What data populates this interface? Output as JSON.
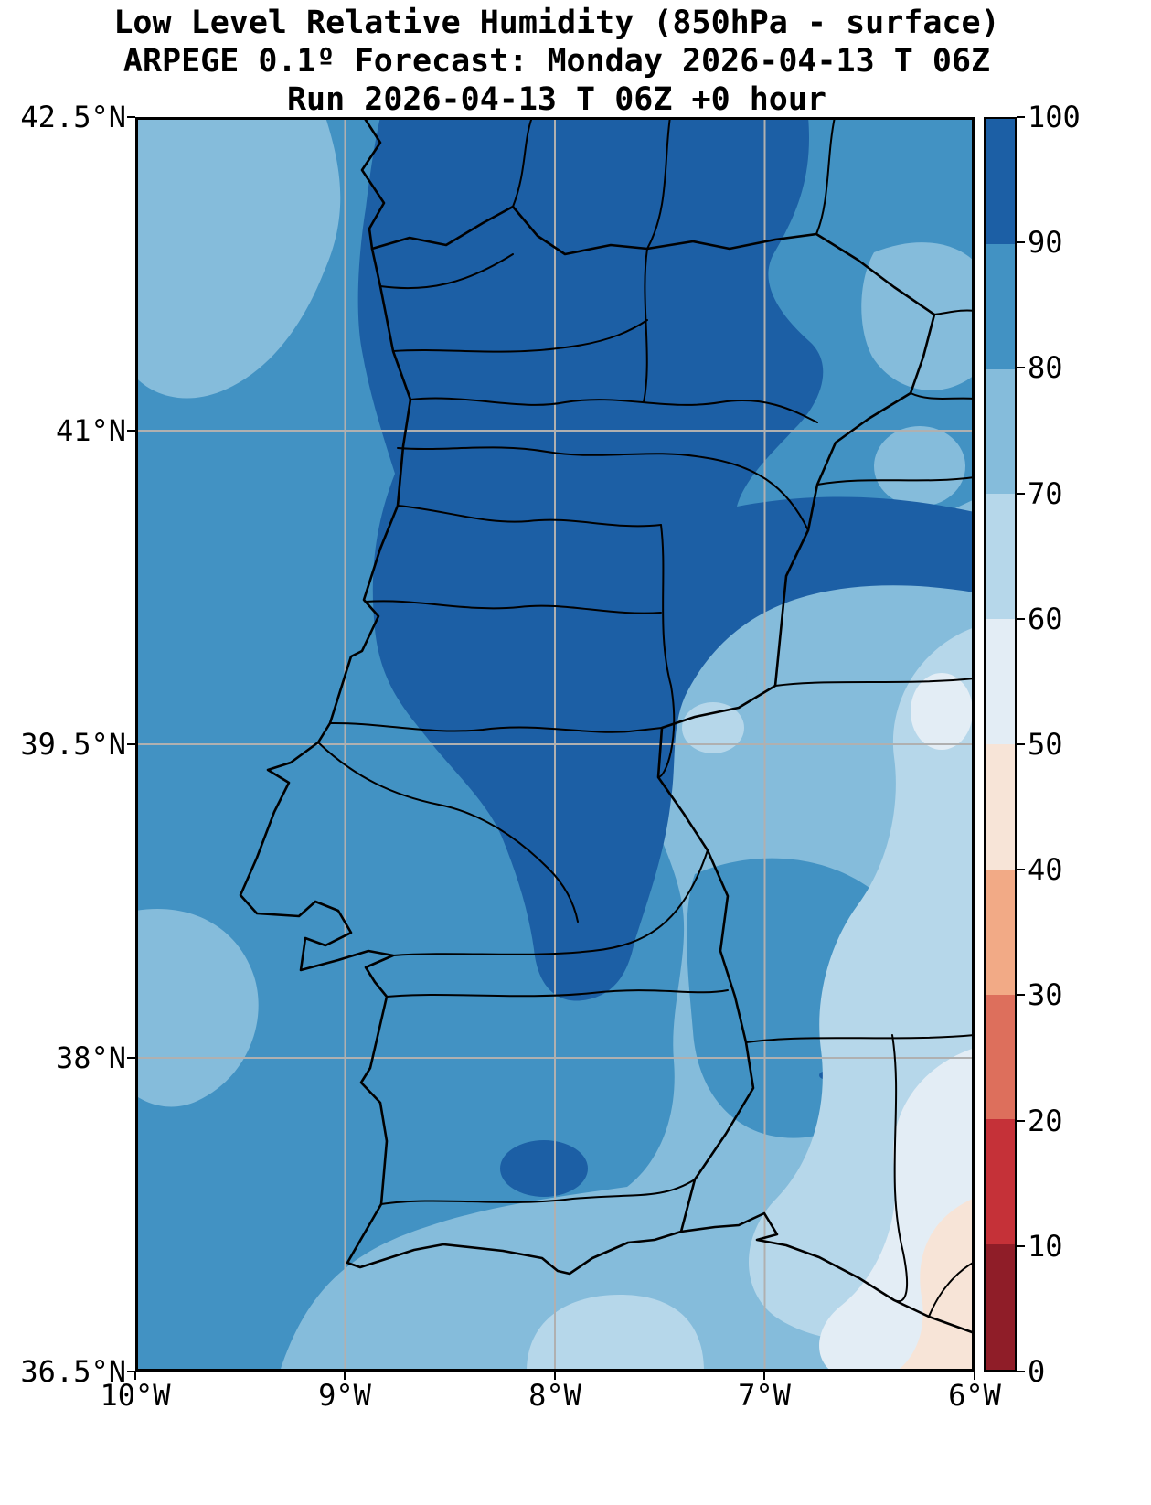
{
  "header": {
    "title": "Low Level Relative Humidity (850hPa - surface)",
    "subtitle": "ARPEGE 0.1º Forecast: Monday 2026-04-13 T 06Z",
    "run_line": "Run 2026-04-13 T 06Z +0 hour"
  },
  "axes": {
    "y_ticks": [
      {
        "label": "42.5°N",
        "pos": 0
      },
      {
        "label": "41°N",
        "pos": 343
      },
      {
        "label": "39.5°N",
        "pos": 686
      },
      {
        "label": "38°N",
        "pos": 1029
      },
      {
        "label": "36.5°N",
        "pos": 1372
      }
    ],
    "x_ticks": [
      {
        "label": "10°W",
        "pos": 0
      },
      {
        "label": "9°W",
        "pos": 229
      },
      {
        "label": "8°W",
        "pos": 459
      },
      {
        "label": "7°W",
        "pos": 688
      },
      {
        "label": "6°W",
        "pos": 918
      }
    ]
  },
  "colorbar": {
    "ticks": [
      "100",
      "90",
      "80",
      "70",
      "60",
      "50",
      "40",
      "30",
      "20",
      "10",
      "0"
    ],
    "segments": [
      {
        "from": 0,
        "to": 10,
        "color": "#8f1d28"
      },
      {
        "from": 10,
        "to": 20,
        "color": "#c53138"
      },
      {
        "from": 20,
        "to": 30,
        "color": "#dd6f5c"
      },
      {
        "from": 30,
        "to": 40,
        "color": "#f2aa86"
      },
      {
        "from": 40,
        "to": 50,
        "color": "#f7e4d7"
      },
      {
        "from": 50,
        "to": 60,
        "color": "#e3edf5"
      },
      {
        "from": 60,
        "to": 70,
        "color": "#b6d7ea"
      },
      {
        "from": 70,
        "to": 80,
        "color": "#85bcdb"
      },
      {
        "from": 80,
        "to": 90,
        "color": "#4292c3"
      },
      {
        "from": 90,
        "to": 100,
        "color": "#1c5fa5"
      }
    ]
  },
  "chart_data": {
    "type": "heatmap",
    "title": "Low Level Relative Humidity (850hPa - surface)",
    "subtitle": "ARPEGE 0.1º Forecast: Monday 2026-04-13 T 06Z",
    "run": "Run 2026-04-13 T 06Z +0 hour",
    "xlabel": "",
    "ylabel": "",
    "x_ticks": [
      "10°W",
      "9°W",
      "8°W",
      "7°W",
      "6°W"
    ],
    "y_ticks": [
      "42.5°N",
      "41°N",
      "39.5°N",
      "38°N",
      "36.5°N"
    ],
    "x_range_deg": [
      -10,
      -6
    ],
    "y_range_deg": [
      36.5,
      42.5
    ],
    "contour_levels": [
      0,
      10,
      20,
      30,
      40,
      50,
      60,
      70,
      80,
      90,
      100
    ],
    "legend_position": "right-colorbar",
    "grid": true,
    "regions": [
      {
        "area": "Northern and central interior Portugal down to ~39.3N",
        "value_range": "90-100"
      },
      {
        "area": "Band along ~40.3-40.6N extending east across Spain to map edge",
        "value_range": "90-100"
      },
      {
        "area": "Atlantic waters and western/southern coastal Portugal",
        "value_range": "80-90"
      },
      {
        "area": "Offshore patches NW corner and west of Lisbon",
        "value_range": "70-80"
      },
      {
        "area": "Spanish plateau east of the Portuguese border",
        "value_range": "60-80"
      },
      {
        "area": "Southeast corner toward the Gulf of Cadiz hinterland",
        "value_range": "40-60"
      },
      {
        "area": "Small pocket in the Algarve interior near 8W 37.1N",
        "value_range": "90-100"
      }
    ]
  }
}
